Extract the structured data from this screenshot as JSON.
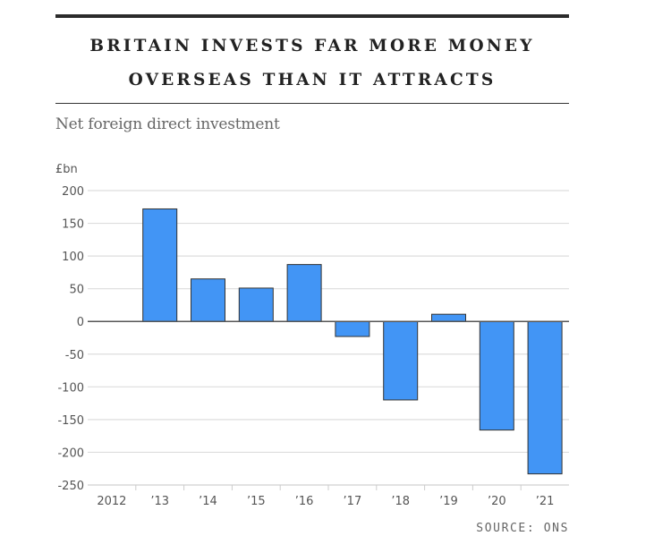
{
  "header": {
    "title_line1": "BRITAIN INVESTS FAR MORE MONEY",
    "title_line2": "OVERSEAS THAN IT ATTRACTS",
    "subtitle": "Net foreign direct investment"
  },
  "source": "SOURCE: ONS",
  "colors": {
    "bar": "#4295f5",
    "bar_stroke": "#333333",
    "grid": "#dddddd",
    "zero_line": "#555555"
  },
  "chart_data": {
    "type": "bar",
    "title": "BRITAIN INVESTS FAR MORE MONEY OVERSEAS THAN IT ATTRACTS",
    "subtitle": "Net foreign direct investment",
    "ylabel": "£bn",
    "xlabel": "",
    "categories": [
      "2012",
      "’13",
      "’14",
      "’15",
      "’16",
      "’17",
      "’18",
      "’19",
      "’20",
      "’21"
    ],
    "values": [
      0,
      172,
      65,
      51,
      87,
      -23,
      -120,
      11,
      -166,
      -233
    ],
    "ylim": [
      -250,
      200
    ],
    "yticks": [
      200,
      150,
      100,
      50,
      0,
      -50,
      -100,
      -150,
      -200,
      -250
    ],
    "grid": true,
    "legend": "none"
  }
}
